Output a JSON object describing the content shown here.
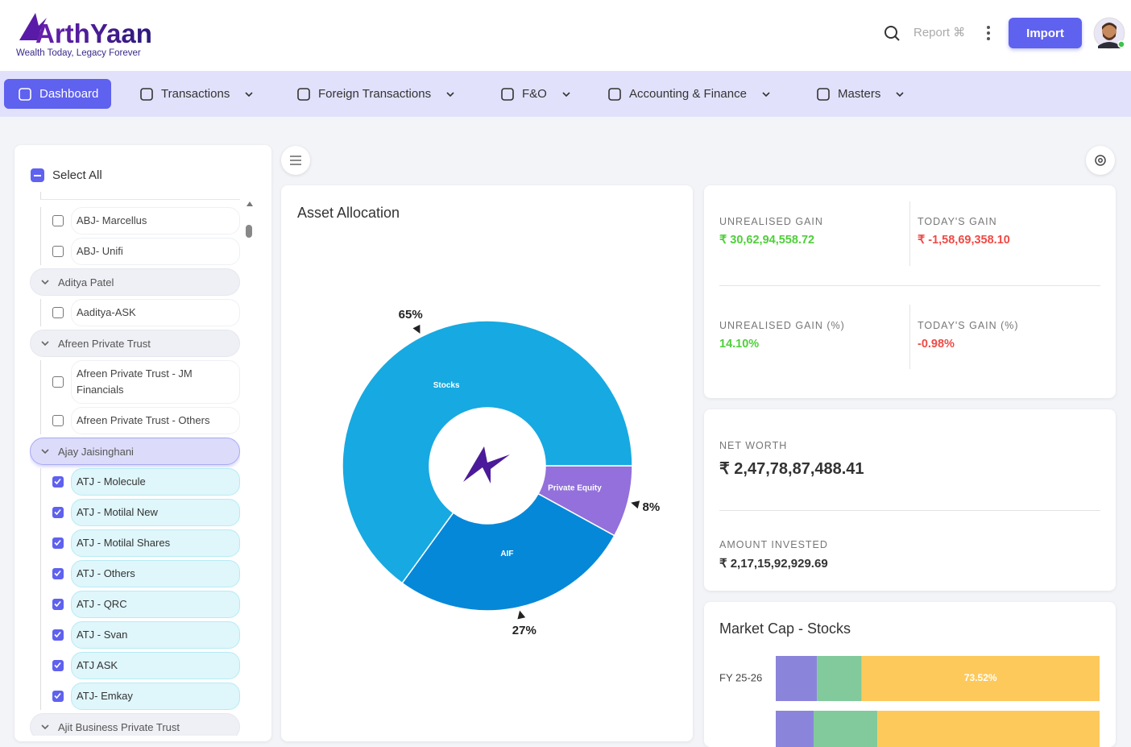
{
  "header": {
    "brand": "ArthYaan",
    "tagline": "Wealth Today, Legacy Forever",
    "search_hint": "Report ⌘",
    "import_button": "Import"
  },
  "nav": {
    "items": [
      "Dashboard",
      "Transactions",
      "Foreign Transactions",
      "F&O",
      "Accounting & Finance",
      "Masters"
    ],
    "active": 0
  },
  "sidebar": {
    "select_all": "Select All",
    "groups": [
      {
        "items": [
          "ABJ- Marcellus",
          "ABJ- Unifi"
        ],
        "selected": false
      },
      {
        "name": "Aditya Patel",
        "items": [
          "Aaditya-ASK"
        ],
        "selected": false
      },
      {
        "name": "Afreen Private Trust",
        "items": [
          "Afreen Private Trust - JM Financials",
          "Afreen Private Trust - Others"
        ],
        "selected": false
      },
      {
        "name": "Ajay Jaisinghani",
        "items": [
          "ATJ - Molecule",
          "ATJ - Motilal New",
          "ATJ - Motilal Shares",
          "ATJ - Others",
          "ATJ - QRC",
          "ATJ - Svan",
          "ATJ ASK",
          "ATJ- Emkay"
        ],
        "selected": true
      },
      {
        "name": "Ajit Business Private Trust",
        "items": [],
        "selected": false
      }
    ]
  },
  "stats": {
    "gains": [
      {
        "label": "UNREALISED GAIN",
        "value": "₹ 30,62,94,558.72",
        "trend": "up"
      },
      {
        "label": "TODAY'S GAIN",
        "value": "₹ -1,58,69,358.10",
        "trend": "down"
      },
      {
        "label": "UNREALISED GAIN (%)",
        "value": "14.10%",
        "trend": "up"
      },
      {
        "label": "TODAY'S GAIN (%)",
        "value": "-0.98%",
        "trend": "down"
      }
    ],
    "net_worth": {
      "label": "NET WORTH",
      "value": "₹ 2,47,78,87,488.41"
    },
    "amount_invested": {
      "label": "AMOUNT INVESTED",
      "value": "₹ 2,17,15,92,929.69"
    }
  },
  "chart_data": [
    {
      "type": "donut",
      "title": "Asset Allocation",
      "categories": [
        "Private Equity",
        "AIF",
        "Stocks"
      ],
      "values": [
        8,
        27,
        65
      ],
      "value_labels": [
        "8%",
        "27%",
        "65%"
      ],
      "colors": [
        "#9370db",
        "#0688d9",
        "#17a9e1"
      ]
    },
    {
      "type": "stacked-bar",
      "title": "Market Cap - Stocks",
      "categories": [
        "FY 25-26",
        null
      ],
      "xlim": [
        0,
        100
      ],
      "series": [
        {
          "color": "#8b84db",
          "values": [
            12.73,
            11.7
          ]
        },
        {
          "color": "#82c99b",
          "values": [
            13.75,
            19.7
          ]
        },
        {
          "color": "#fdc95b",
          "values": [
            73.52,
            68.6
          ],
          "value_labels": [
            "73.52%",
            null
          ]
        }
      ]
    }
  ]
}
